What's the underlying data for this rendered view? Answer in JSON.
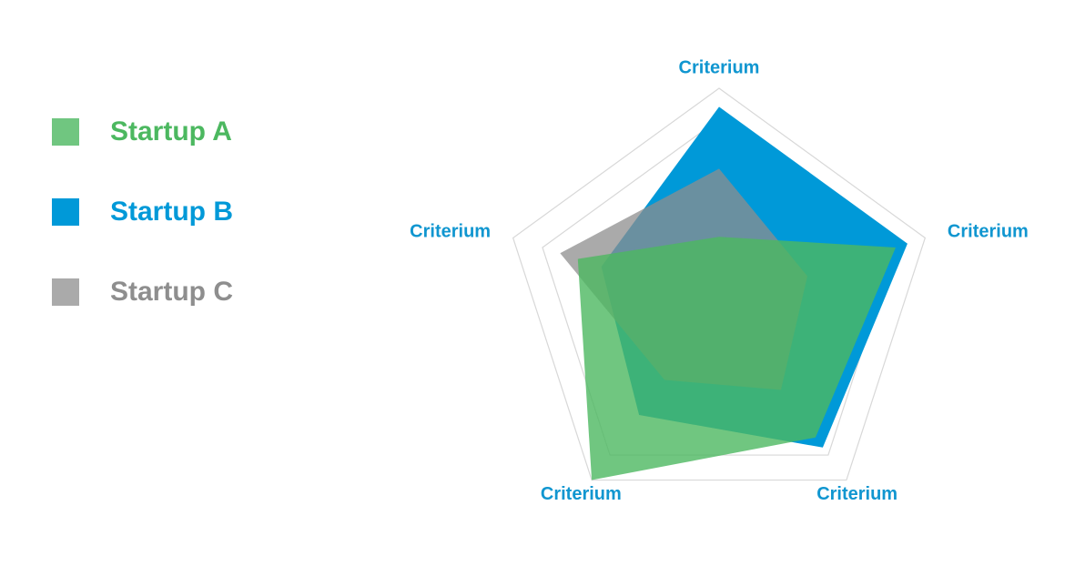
{
  "chart_data": {
    "type": "radar",
    "categories": [
      "Criterium",
      "Criterium",
      "Criterium",
      "Criterium",
      "Criterium"
    ],
    "ylim": [
      0,
      7
    ],
    "yticks": [
      6,
      7
    ],
    "grid": true,
    "series": [
      {
        "name": "Startup A",
        "color": "#4cb860",
        "values": [
          2.2,
          6.0,
          5.3,
          7.0,
          4.8
        ]
      },
      {
        "name": "Startup B",
        "color": "#0099d8",
        "values": [
          6.4,
          6.4,
          5.7,
          4.4,
          4.0
        ]
      },
      {
        "name": "Startup C",
        "color": "#8e8e8e",
        "values": [
          4.4,
          3.0,
          3.4,
          3.0,
          5.4
        ]
      }
    ]
  }
}
